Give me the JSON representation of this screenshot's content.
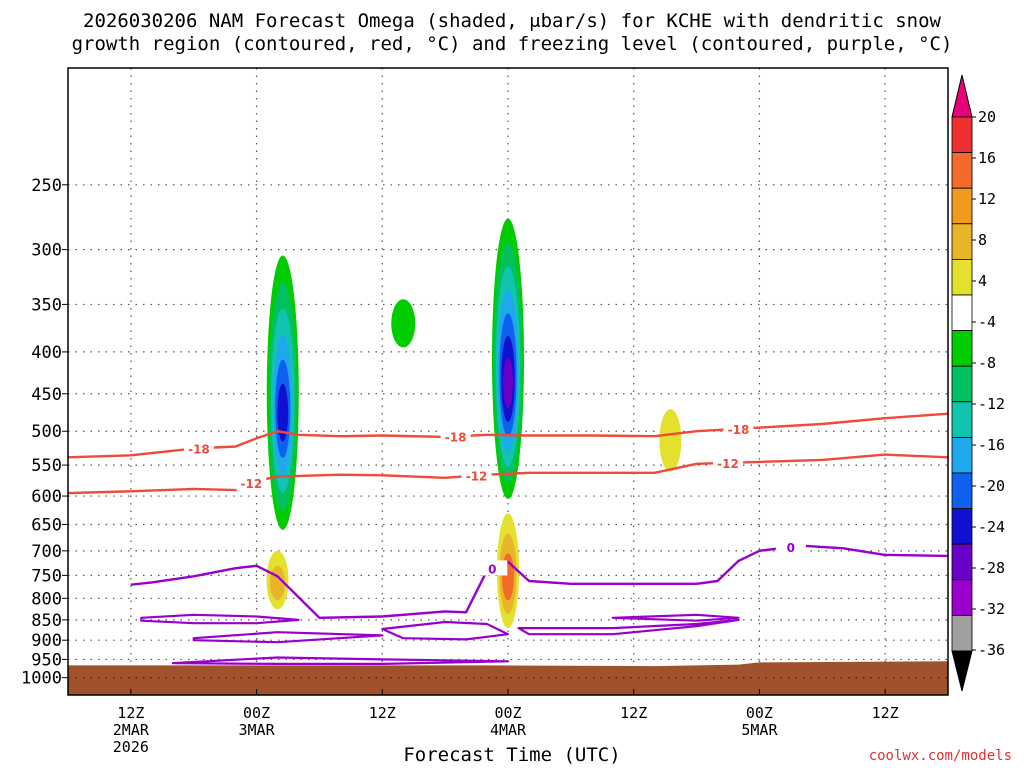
{
  "chart_data": {
    "type": "heatmap",
    "title_line1": "2026030206 NAM Forecast Omega (shaded, μbar/s) for KCHE with dendritic snow",
    "title_line2": "growth region (contoured, red, °C) and freezing level (contoured, purple, °C)",
    "xlabel": "Forecast Time (UTC)",
    "ylabel": "",
    "x_ticks": [
      {
        "hour": 6,
        "label1": "12Z",
        "label2": "2MAR",
        "label3": "2026"
      },
      {
        "hour": 18,
        "label1": "00Z",
        "label2": "3MAR",
        "label3": ""
      },
      {
        "hour": 30,
        "label1": "12Z",
        "label2": "",
        "label3": ""
      },
      {
        "hour": 42,
        "label1": "00Z",
        "label2": "4MAR",
        "label3": ""
      },
      {
        "hour": 54,
        "label1": "12Z",
        "label2": "",
        "label3": ""
      },
      {
        "hour": 66,
        "label1": "00Z",
        "label2": "5MAR",
        "label3": ""
      },
      {
        "hour": 78,
        "label1": "12Z",
        "label2": "",
        "label3": ""
      }
    ],
    "x_range_hours": [
      0,
      84
    ],
    "y_axis": "pressure (hPa), log scale, reversed",
    "y_range": [
      1050,
      180
    ],
    "y_ticks": [
      250,
      300,
      350,
      400,
      450,
      500,
      550,
      600,
      650,
      700,
      750,
      800,
      850,
      900,
      950,
      1000
    ],
    "grid": true,
    "colorbar": {
      "ticks": [
        "20",
        "16",
        "12",
        "8",
        "4",
        "-4",
        "-8",
        "-12",
        "-16",
        "-20",
        "-24",
        "-28",
        "-32",
        "-36"
      ],
      "colors": [
        "#e8007a",
        "#f03030",
        "#f46a2a",
        "#f09a20",
        "#e8b42a",
        "#e4e02e",
        "#ffffff",
        "#00cc00",
        "#00c060",
        "#10c4b0",
        "#20a8ee",
        "#1060f0",
        "#1010d0",
        "#6a00c8",
        "#9a00cc",
        "#a0a0a0",
        "#000000"
      ]
    },
    "omega_regions": [
      {
        "time_h": 20.5,
        "p_top": 305,
        "p_bottom": 660,
        "peak": -24
      },
      {
        "time_h": 42.0,
        "p_top": 275,
        "p_bottom": 605,
        "peak": -28
      },
      {
        "time_h": 32.0,
        "p_top": 345,
        "p_bottom": 395,
        "peak": -4
      },
      {
        "time_h": 57.5,
        "p_top": 470,
        "p_bottom": 560,
        "peak": 4
      },
      {
        "time_h": 20.0,
        "p_top": 700,
        "p_bottom": 825,
        "peak": 8
      },
      {
        "time_h": 42.0,
        "p_top": 630,
        "p_bottom": 870,
        "peak": 12
      }
    ],
    "contour_labels": {
      "dgz_warm": "-12",
      "dgz_cold": "-18",
      "freezing": "0"
    },
    "series": [
      {
        "name": "-18 isotherm",
        "color": "#ef4a3a",
        "x": [
          0,
          6,
          12,
          16,
          18,
          20,
          22,
          26,
          30,
          36,
          40,
          44,
          50,
          56,
          60,
          66,
          72,
          78,
          84
        ],
        "y": [
          538,
          535,
          525,
          522,
          510,
          500,
          505,
          507,
          506,
          508,
          505,
          506,
          506,
          507,
          500,
          495,
          490,
          482,
          476
        ]
      },
      {
        "name": "-12 isotherm",
        "color": "#ef4a3a",
        "x": [
          0,
          6,
          12,
          16,
          18,
          20,
          22,
          26,
          30,
          36,
          40,
          44,
          50,
          56,
          60,
          66,
          72,
          78,
          84
        ],
        "y": [
          595,
          592,
          588,
          590,
          575,
          568,
          567,
          565,
          566,
          570,
          565,
          562,
          562,
          562,
          548,
          545,
          542,
          534,
          538
        ]
      },
      {
        "name": "0 isotherm (freezing level)",
        "color": "#9a00cc",
        "x": [
          6,
          8,
          12,
          16,
          18,
          20,
          24,
          30,
          36,
          38,
          40,
          42,
          44,
          48,
          54,
          60,
          62,
          64,
          66,
          70,
          74,
          78,
          84
        ],
        "y": [
          770,
          765,
          752,
          735,
          730,
          752,
          845,
          842,
          830,
          832,
          740,
          722,
          762,
          768,
          768,
          768,
          762,
          720,
          700,
          690,
          695,
          708,
          710
        ]
      }
    ]
  },
  "credit": "coolwx.com/models"
}
